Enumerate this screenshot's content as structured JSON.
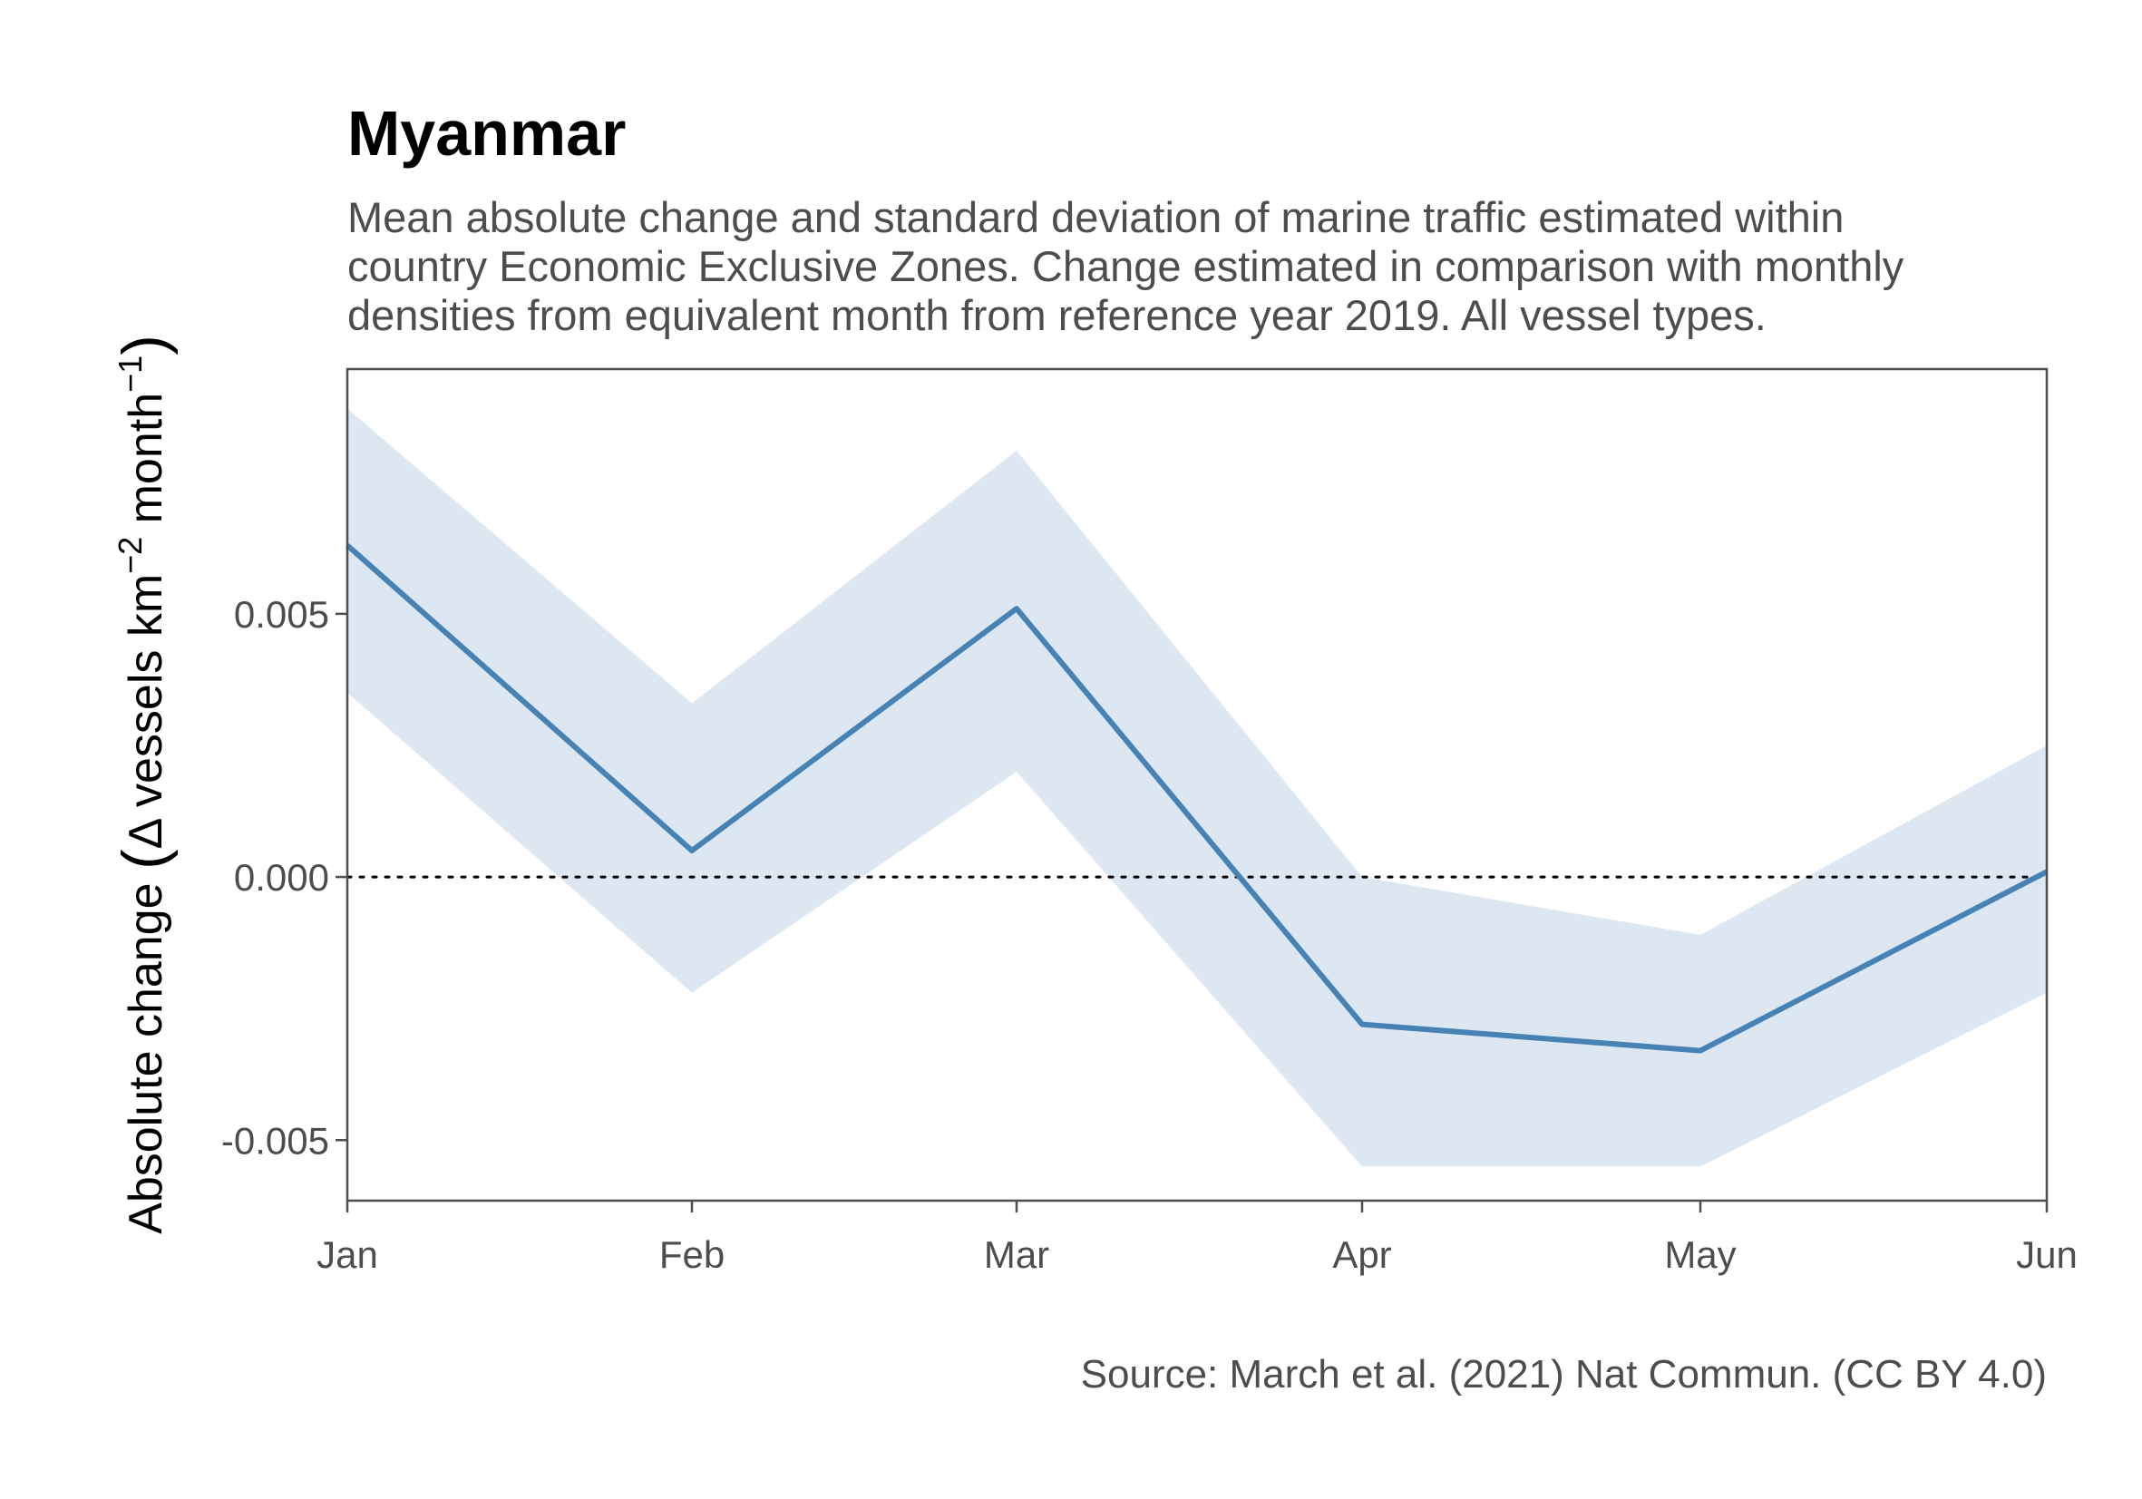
{
  "chart_data": {
    "type": "line",
    "title": "Myanmar",
    "subtitle_lines": [
      "Mean absolute change and standard deviation of marine traffic estimated within",
      "country Economic Exclusive Zones. Change estimated in comparison with monthly",
      "densities from equivalent month from reference year 2019. All vessel types."
    ],
    "categories": [
      "Jan",
      "Feb",
      "Mar",
      "Apr",
      "May",
      "Jun"
    ],
    "series": [
      {
        "values": [
          0.0063,
          0.0005,
          0.0051,
          -0.0028,
          -0.0033,
          0.0001
        ],
        "lower": [
          0.0035,
          -0.0022,
          0.002,
          -0.0055,
          -0.0055,
          -0.0022
        ],
        "upper": [
          0.0089,
          0.0033,
          0.0081,
          0.0,
          -0.0011,
          0.0025
        ]
      }
    ],
    "y_ticks": [
      -0.005,
      0.0,
      0.005
    ],
    "y_tick_labels": [
      "-0.005",
      "0.000",
      "0.005"
    ],
    "ylim": [
      -0.00615,
      0.00965
    ],
    "ylabel": {
      "prefix": "Absolute change ",
      "open_paren": "(",
      "delta": "Δ",
      "text_1": " vessels km",
      "sup_1": "−2",
      "text_2": " month",
      "sup_2": "−1",
      "close_paren": ")"
    },
    "reference_line": 0,
    "caption": "Source: March et al. (2021) Nat Commun. (CC BY 4.0)",
    "grid": false,
    "colors": {
      "line": "#4682b4",
      "ribbon": "#dce7f2",
      "panel_border": "#4d4d4d",
      "reference_line": "#000000"
    }
  }
}
